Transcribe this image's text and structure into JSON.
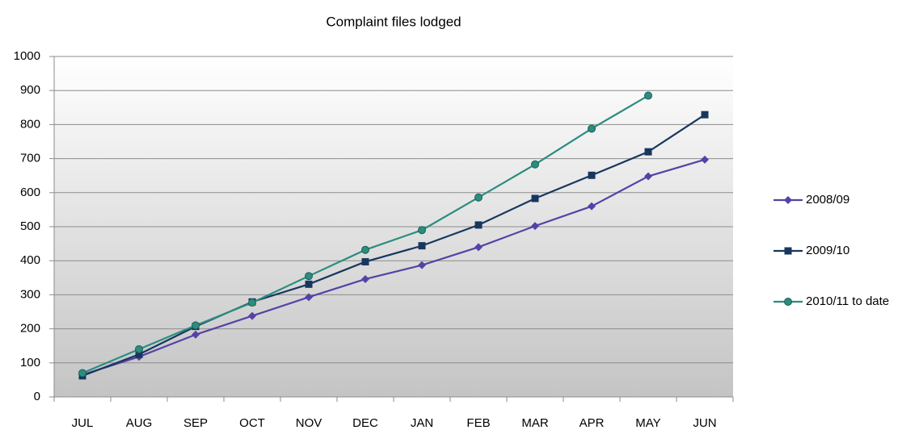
{
  "chart_data": {
    "type": "line",
    "title": "Complaint files lodged",
    "categories": [
      "JUL",
      "AUG",
      "SEP",
      "OCT",
      "NOV",
      "DEC",
      "JAN",
      "FEB",
      "MAR",
      "APR",
      "MAY",
      "JUN"
    ],
    "series": [
      {
        "name": "2008/09",
        "color": "#5642a6",
        "marker": "diamond",
        "values": [
          65,
          118,
          183,
          238,
          293,
          346,
          387,
          440,
          502,
          560,
          648,
          697
        ]
      },
      {
        "name": "2009/10",
        "color": "#17375e",
        "marker": "square",
        "values": [
          62,
          125,
          207,
          279,
          331,
          397,
          444,
          505,
          583,
          651,
          720,
          829
        ]
      },
      {
        "name": "2010/11 to date",
        "color": "#2a8d80",
        "marker": "circle",
        "values": [
          70,
          140,
          210,
          277,
          355,
          432,
          490,
          586,
          683,
          788,
          885,
          null
        ]
      }
    ],
    "ylim": [
      0,
      1000
    ],
    "yticks": [
      0,
      100,
      200,
      300,
      400,
      500,
      600,
      700,
      800,
      900,
      1000
    ],
    "grid": true,
    "legend": "right"
  }
}
